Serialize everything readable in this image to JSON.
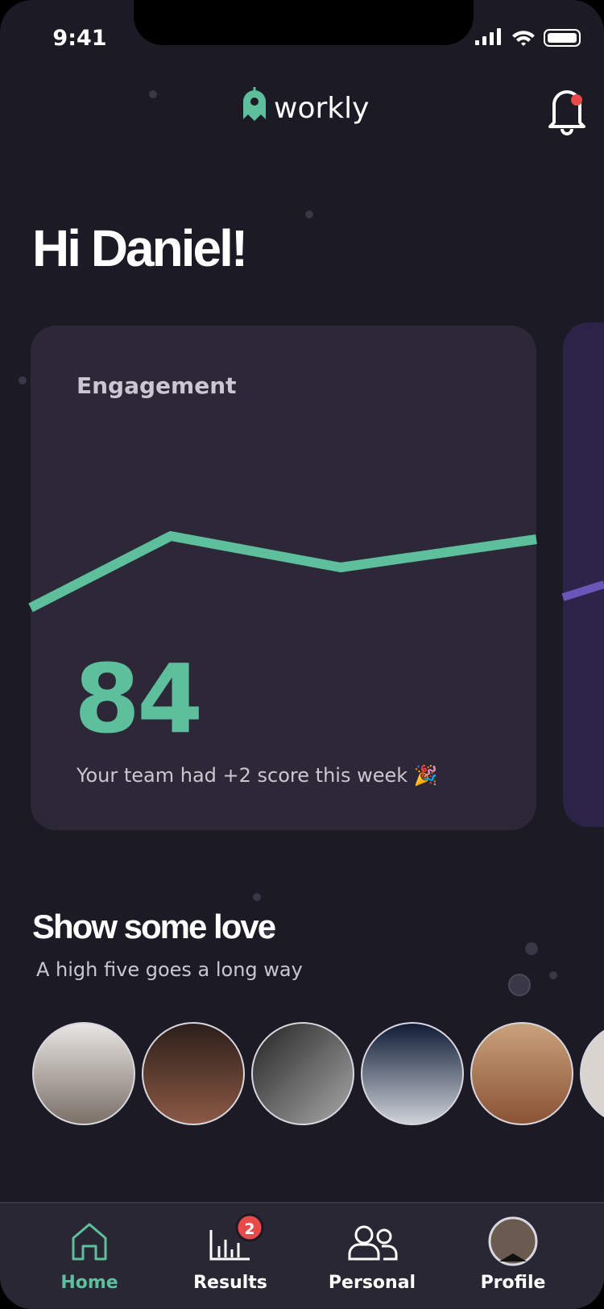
{
  "status": {
    "time": "9:41"
  },
  "header": {
    "logo": "workly"
  },
  "greeting": "Hi Daniel!",
  "card": {
    "title": "Engagement",
    "score": 84,
    "caption": "Your team had +2 score this week 🎉"
  },
  "love": {
    "title": "Show some love",
    "subtitle": "A high five goes a long way"
  },
  "tabs": [
    {
      "label": "Home"
    },
    {
      "label": "Results",
      "badge": 2
    },
    {
      "label": "Personal"
    },
    {
      "label": "Profile"
    }
  ]
}
